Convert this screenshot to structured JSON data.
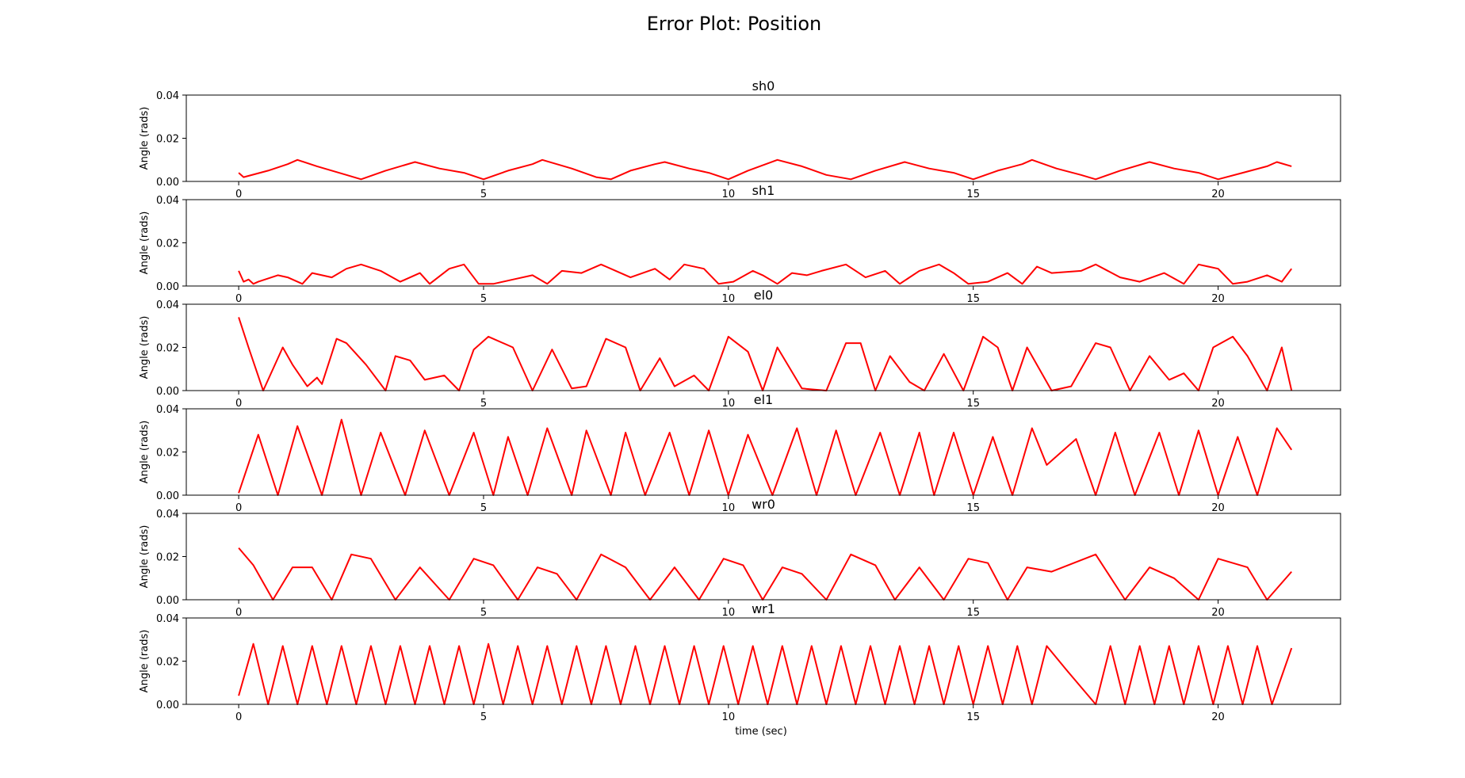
{
  "figure": {
    "title": "Error Plot: Position",
    "xlabel": "time (sec)"
  },
  "chart_data": [
    {
      "type": "line",
      "title": "sh0",
      "xlabel": "",
      "ylabel": "Angle (rads)",
      "xlim": [
        -1.07,
        22.5
      ],
      "ylim": [
        0,
        0.04
      ],
      "xticks": [
        0,
        5,
        10,
        15,
        20
      ],
      "yticks": [
        0,
        0.02,
        0.04
      ],
      "ytick_labels": [
        "0.00",
        "0.02",
        "0.04"
      ],
      "grid": false,
      "color": "#ff0000",
      "series": [
        {
          "x": [
            0,
            0.1,
            0.6,
            1.0,
            1.2,
            1.6,
            2.2,
            2.5,
            3.0,
            3.6,
            4.1,
            4.6,
            5.0,
            5.5,
            6.0,
            6.2,
            6.8,
            7.3,
            7.6,
            8.0,
            8.5,
            8.7,
            9.2,
            9.6,
            10.0,
            10.4,
            11.0,
            11.5,
            12.0,
            12.5,
            13.0,
            13.6,
            14.1,
            14.6,
            15.0,
            15.5,
            16.0,
            16.2,
            16.7,
            17.2,
            17.5,
            18.0,
            18.6,
            19.1,
            19.6,
            20.0,
            20.5,
            21.0,
            21.2,
            21.5
          ],
          "y": [
            0.004,
            0.002,
            0.005,
            0.008,
            0.01,
            0.007,
            0.003,
            0.001,
            0.005,
            0.009,
            0.006,
            0.004,
            0.001,
            0.005,
            0.008,
            0.01,
            0.006,
            0.002,
            0.001,
            0.005,
            0.008,
            0.009,
            0.006,
            0.004,
            0.001,
            0.005,
            0.01,
            0.007,
            0.003,
            0.001,
            0.005,
            0.009,
            0.006,
            0.004,
            0.001,
            0.005,
            0.008,
            0.01,
            0.006,
            0.003,
            0.001,
            0.005,
            0.009,
            0.006,
            0.004,
            0.001,
            0.004,
            0.007,
            0.009,
            0.007
          ]
        }
      ]
    },
    {
      "type": "line",
      "title": "sh1",
      "xlabel": "",
      "ylabel": "Angle (rads)",
      "xlim": [
        -1.07,
        22.5
      ],
      "ylim": [
        0,
        0.04
      ],
      "xticks": [
        0,
        5,
        10,
        15,
        20
      ],
      "yticks": [
        0,
        0.02,
        0.04
      ],
      "ytick_labels": [
        "0.00",
        "0.02",
        "0.04"
      ],
      "grid": false,
      "color": "#ff0000",
      "series": [
        {
          "x": [
            0,
            0.1,
            0.2,
            0.3,
            0.4,
            0.8,
            1.0,
            1.3,
            1.5,
            1.9,
            2.2,
            2.5,
            2.9,
            3.3,
            3.7,
            3.9,
            4.3,
            4.6,
            4.9,
            5.2,
            5.6,
            6.0,
            6.3,
            6.6,
            7.0,
            7.4,
            7.7,
            8.0,
            8.5,
            8.8,
            9.1,
            9.5,
            9.8,
            10.1,
            10.5,
            10.7,
            11.0,
            11.3,
            11.6,
            11.9,
            12.4,
            12.8,
            13.2,
            13.5,
            13.9,
            14.3,
            14.6,
            14.9,
            15.3,
            15.7,
            16.0,
            16.3,
            16.6,
            17.2,
            17.5,
            18.0,
            18.4,
            18.9,
            19.3,
            19.6,
            20.0,
            20.3,
            20.6,
            21.0,
            21.3,
            21.5
          ],
          "y": [
            0.007,
            0.002,
            0.003,
            0.001,
            0.002,
            0.005,
            0.004,
            0.001,
            0.006,
            0.004,
            0.008,
            0.01,
            0.007,
            0.002,
            0.006,
            0.001,
            0.008,
            0.01,
            0.001,
            0.001,
            0.003,
            0.005,
            0.001,
            0.007,
            0.006,
            0.01,
            0.007,
            0.004,
            0.008,
            0.003,
            0.01,
            0.008,
            0.001,
            0.002,
            0.007,
            0.005,
            0.001,
            0.006,
            0.005,
            0.007,
            0.01,
            0.004,
            0.007,
            0.001,
            0.007,
            0.01,
            0.006,
            0.001,
            0.002,
            0.006,
            0.001,
            0.009,
            0.006,
            0.007,
            0.01,
            0.004,
            0.002,
            0.006,
            0.001,
            0.01,
            0.008,
            0.001,
            0.002,
            0.005,
            0.002,
            0.008
          ]
        }
      ]
    },
    {
      "type": "line",
      "title": "el0",
      "xlabel": "",
      "ylabel": "Angle (rads)",
      "xlim": [
        -1.07,
        22.5
      ],
      "ylim": [
        0,
        0.04
      ],
      "xticks": [
        0,
        5,
        10,
        15,
        20
      ],
      "yticks": [
        0,
        0.02,
        0.04
      ],
      "ytick_labels": [
        "0.00",
        "0.02",
        "0.04"
      ],
      "grid": false,
      "color": "#ff0000",
      "series": [
        {
          "x": [
            0,
            0.2,
            0.5,
            0.9,
            1.1,
            1.4,
            1.6,
            1.7,
            2.0,
            2.2,
            2.6,
            3.0,
            3.2,
            3.5,
            3.8,
            4.2,
            4.5,
            4.8,
            5.1,
            5.6,
            6.0,
            6.4,
            6.8,
            7.1,
            7.5,
            7.9,
            8.2,
            8.6,
            8.9,
            9.3,
            9.6,
            10.0,
            10.4,
            10.7,
            11.0,
            11.5,
            12.0,
            12.4,
            12.7,
            13.0,
            13.3,
            13.7,
            14.0,
            14.4,
            14.8,
            15.2,
            15.5,
            15.8,
            16.1,
            16.6,
            17.0,
            17.5,
            17.8,
            18.2,
            18.6,
            19.0,
            19.3,
            19.6,
            19.9,
            20.3,
            20.6,
            21.0,
            21.3,
            21.5
          ],
          "y": [
            0.034,
            0.02,
            0.0,
            0.02,
            0.012,
            0.002,
            0.006,
            0.003,
            0.024,
            0.022,
            0.012,
            0.0,
            0.016,
            0.014,
            0.005,
            0.007,
            0.0,
            0.019,
            0.025,
            0.02,
            0.0,
            0.019,
            0.001,
            0.002,
            0.024,
            0.02,
            0.0,
            0.015,
            0.002,
            0.007,
            0.0,
            0.025,
            0.018,
            0.0,
            0.02,
            0.001,
            0.0,
            0.022,
            0.022,
            0.0,
            0.016,
            0.004,
            0.0,
            0.017,
            0.0,
            0.025,
            0.02,
            0.0,
            0.02,
            0.0,
            0.002,
            0.022,
            0.02,
            0.0,
            0.016,
            0.005,
            0.008,
            0.0,
            0.02,
            0.025,
            0.016,
            0.0,
            0.02,
            0.0
          ]
        }
      ]
    },
    {
      "type": "line",
      "title": "el1",
      "xlabel": "",
      "ylabel": "Angle (rads)",
      "xlim": [
        -1.07,
        22.5
      ],
      "ylim": [
        0,
        0.04
      ],
      "xticks": [
        0,
        5,
        10,
        15,
        20
      ],
      "yticks": [
        0,
        0.02,
        0.04
      ],
      "ytick_labels": [
        "0.00",
        "0.02",
        "0.04"
      ],
      "grid": false,
      "color": "#ff0000",
      "series": [
        {
          "x": [
            0,
            0.4,
            0.8,
            1.2,
            1.7,
            2.1,
            2.5,
            2.9,
            3.4,
            3.8,
            4.3,
            4.8,
            5.2,
            5.5,
            5.9,
            6.3,
            6.8,
            7.1,
            7.6,
            7.9,
            8.3,
            8.8,
            9.2,
            9.6,
            10.0,
            10.4,
            10.9,
            11.4,
            11.8,
            12.2,
            12.6,
            13.1,
            13.5,
            13.9,
            14.2,
            14.6,
            15.0,
            15.4,
            15.8,
            16.2,
            16.5,
            17.1,
            17.5,
            17.9,
            18.3,
            18.8,
            19.2,
            19.6,
            20.0,
            20.4,
            20.8,
            21.2,
            21.5
          ],
          "y": [
            0.001,
            0.028,
            0.0,
            0.032,
            0.0,
            0.035,
            0.0,
            0.029,
            0.0,
            0.03,
            0.0,
            0.029,
            0.0,
            0.027,
            0.0,
            0.031,
            0.0,
            0.03,
            0.0,
            0.029,
            0.0,
            0.029,
            0.0,
            0.03,
            0.0,
            0.028,
            0.0,
            0.031,
            0.0,
            0.03,
            0.0,
            0.029,
            0.0,
            0.029,
            0.0,
            0.029,
            0.0,
            0.027,
            0.0,
            0.031,
            0.014,
            0.026,
            0.0,
            0.029,
            0.0,
            0.029,
            0.0,
            0.03,
            0.0,
            0.027,
            0.0,
            0.031,
            0.021
          ]
        }
      ]
    },
    {
      "type": "line",
      "title": "wr0",
      "xlabel": "",
      "ylabel": "Angle (rads)",
      "xlim": [
        -1.07,
        22.5
      ],
      "ylim": [
        0,
        0.04
      ],
      "xticks": [
        0,
        5,
        10,
        15,
        20
      ],
      "yticks": [
        0,
        0.02,
        0.04
      ],
      "ytick_labels": [
        "0.00",
        "0.02",
        "0.04"
      ],
      "grid": false,
      "color": "#ff0000",
      "series": [
        {
          "x": [
            0,
            0.3,
            0.7,
            1.1,
            1.5,
            1.9,
            2.3,
            2.7,
            3.2,
            3.7,
            4.3,
            4.8,
            5.2,
            5.7,
            6.1,
            6.5,
            6.9,
            7.4,
            7.9,
            8.4,
            8.9,
            9.4,
            9.9,
            10.3,
            10.7,
            11.1,
            11.5,
            12.0,
            12.5,
            13.0,
            13.4,
            13.9,
            14.4,
            14.9,
            15.3,
            15.7,
            16.1,
            16.6,
            17.5,
            18.1,
            18.6,
            19.1,
            19.6,
            20.0,
            20.6,
            21.0,
            21.5
          ],
          "y": [
            0.024,
            0.016,
            0.0,
            0.015,
            0.015,
            0.0,
            0.021,
            0.019,
            0.0,
            0.015,
            0.0,
            0.019,
            0.016,
            0.0,
            0.015,
            0.012,
            0.0,
            0.021,
            0.015,
            0.0,
            0.015,
            0.0,
            0.019,
            0.016,
            0.0,
            0.015,
            0.012,
            0.0,
            0.021,
            0.016,
            0.0,
            0.015,
            0.0,
            0.019,
            0.017,
            0.0,
            0.015,
            0.013,
            0.021,
            0.0,
            0.015,
            0.01,
            0.0,
            0.019,
            0.015,
            0.0,
            0.013
          ]
        }
      ]
    },
    {
      "type": "line",
      "title": "wr1",
      "xlabel": "time (sec)",
      "ylabel": "Angle (rads)",
      "xlim": [
        -1.07,
        22.5
      ],
      "ylim": [
        0,
        0.04
      ],
      "xticks": [
        0,
        5,
        10,
        15,
        20
      ],
      "yticks": [
        0,
        0.02,
        0.04
      ],
      "ytick_labels": [
        "0.00",
        "0.02",
        "0.04"
      ],
      "grid": false,
      "color": "#ff0000",
      "series": [
        {
          "x": [
            0,
            0.3,
            0.6,
            0.9,
            1.2,
            1.5,
            1.8,
            2.1,
            2.4,
            2.7,
            3.0,
            3.3,
            3.6,
            3.9,
            4.2,
            4.5,
            4.8,
            5.1,
            5.4,
            5.7,
            6.0,
            6.3,
            6.6,
            6.9,
            7.2,
            7.5,
            7.8,
            8.1,
            8.4,
            8.7,
            9.0,
            9.3,
            9.6,
            9.9,
            10.2,
            10.5,
            10.8,
            11.1,
            11.4,
            11.7,
            12.0,
            12.3,
            12.6,
            12.9,
            13.2,
            13.5,
            13.8,
            14.1,
            14.4,
            14.7,
            15.0,
            15.3,
            15.6,
            15.9,
            16.2,
            16.5,
            16.9,
            17.5,
            17.8,
            18.1,
            18.4,
            18.7,
            19.0,
            19.3,
            19.6,
            19.9,
            20.2,
            20.5,
            20.8,
            21.1,
            21.5
          ],
          "y": [
            0.004,
            0.028,
            0.0,
            0.027,
            0.0,
            0.027,
            0.0,
            0.027,
            0.0,
            0.027,
            0.0,
            0.027,
            0.0,
            0.027,
            0.0,
            0.027,
            0.0,
            0.028,
            0.0,
            0.027,
            0.0,
            0.027,
            0.0,
            0.027,
            0.0,
            0.027,
            0.0,
            0.027,
            0.0,
            0.027,
            0.0,
            0.027,
            0.0,
            0.027,
            0.0,
            0.027,
            0.0,
            0.027,
            0.0,
            0.027,
            0.0,
            0.027,
            0.0,
            0.027,
            0.0,
            0.027,
            0.0,
            0.027,
            0.0,
            0.027,
            0.0,
            0.027,
            0.0,
            0.027,
            0.0,
            0.027,
            0.016,
            0.0,
            0.027,
            0.0,
            0.027,
            0.0,
            0.027,
            0.0,
            0.027,
            0.0,
            0.027,
            0.0,
            0.027,
            0.0,
            0.026
          ]
        }
      ]
    }
  ]
}
